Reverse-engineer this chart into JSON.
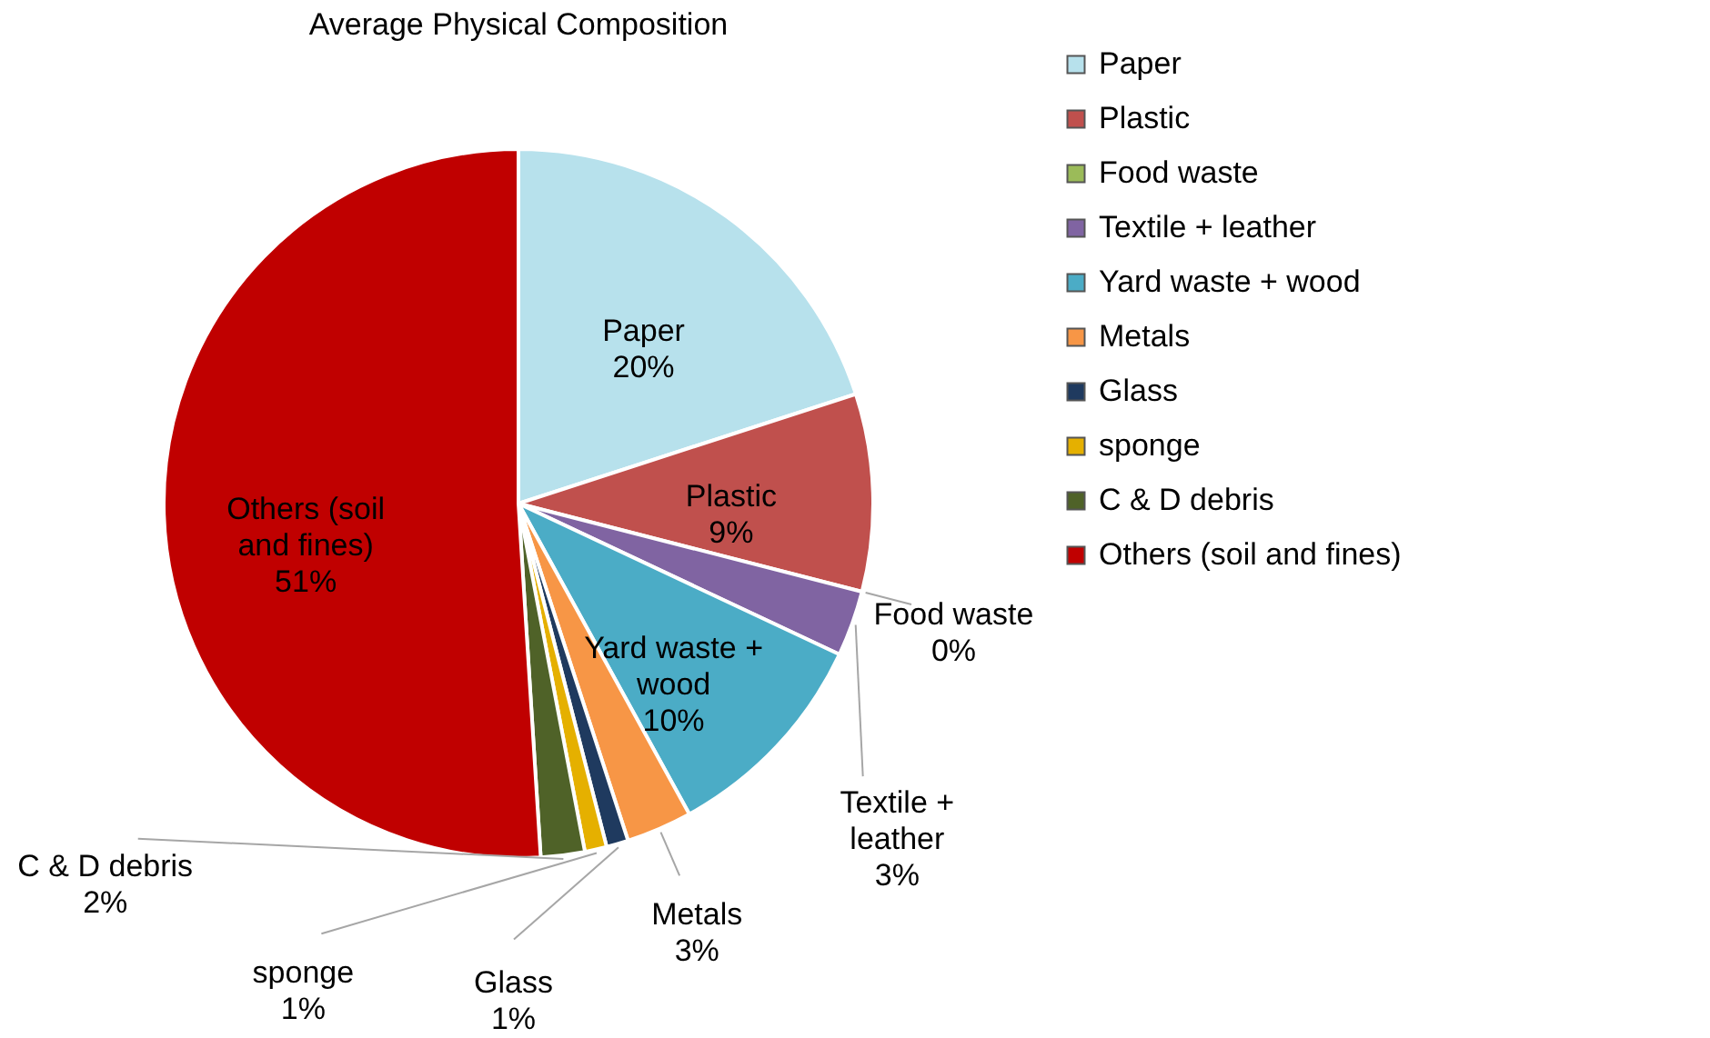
{
  "chart_data": {
    "type": "pie",
    "title": "Average Physical Composition",
    "categories": [
      "Paper",
      "Plastic",
      "Food waste",
      "Textile + leather",
      "Yard waste + wood",
      "Metals",
      "Glass",
      "sponge",
      "C & D debris",
      "Others  (soil and fines)"
    ],
    "values": [
      20,
      9,
      0,
      3,
      10,
      3,
      1,
      1,
      2,
      51
    ],
    "colors": [
      "#b7e1ec",
      "#c0504d",
      "#9bbb59",
      "#8064a2",
      "#4bacc6",
      "#f79646",
      "#1f3a5f",
      "#e5b000",
      "#4f6228",
      "#c00000"
    ],
    "value_labels": [
      "20%",
      "9%",
      "0%",
      "3%",
      "10%",
      "3%",
      "1%",
      "1%",
      "2%",
      "51%"
    ],
    "legend": "right"
  }
}
